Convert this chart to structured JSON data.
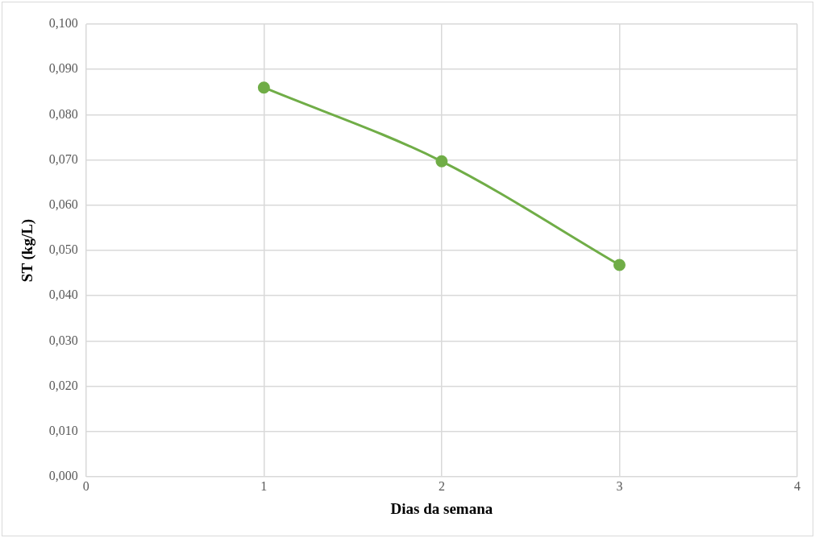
{
  "chart_data": {
    "type": "line",
    "xlabel": "Dias da semana",
    "ylabel": "ST (kg/L)",
    "x": [
      1,
      2,
      3
    ],
    "series": [
      {
        "color": "#70ad47",
        "values": [
          0.086,
          0.0697,
          0.0468
        ]
      }
    ],
    "xlim": [
      0,
      4
    ],
    "xticks": [
      0,
      1,
      2,
      3,
      4
    ],
    "ylim": [
      0,
      0.1
    ],
    "yticks": [
      {
        "value": 0,
        "label": "0,000"
      },
      {
        "value": 0.01,
        "label": "0,010"
      },
      {
        "value": 0.02,
        "label": "0,020"
      },
      {
        "value": 0.03,
        "label": "0,030"
      },
      {
        "value": 0.04,
        "label": "0,040"
      },
      {
        "value": 0.05,
        "label": "0,050"
      },
      {
        "value": 0.06,
        "label": "0,060"
      },
      {
        "value": 0.07,
        "label": "0,070"
      },
      {
        "value": 0.08,
        "label": "0,080"
      },
      {
        "value": 0.09,
        "label": "0,090"
      },
      {
        "value": 0.1,
        "label": "0,100"
      }
    ],
    "grid": true,
    "marker": "circle",
    "line_style": "solid"
  }
}
